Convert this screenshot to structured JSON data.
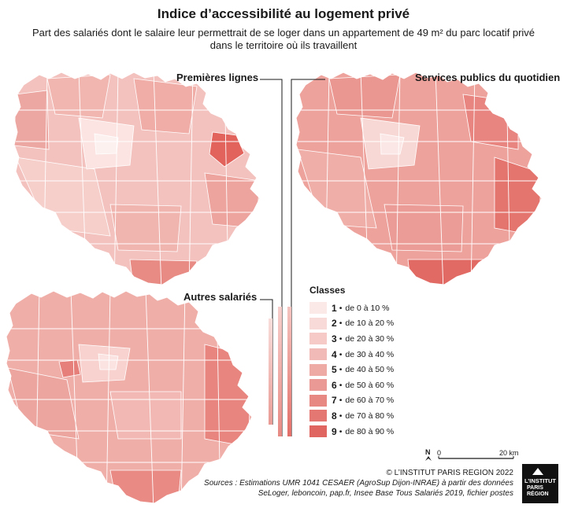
{
  "title": "Indice d’accessibilité au logement privé",
  "subtitle_line1": "Part des salariés dont le salaire leur permettrait de se loger dans un appartement de 49 m² du parc locatif privé",
  "subtitle_line2": "dans le territoire où ils travaillent",
  "maps": [
    {
      "label": "Premières lignes"
    },
    {
      "label": "Services publics du quotidien"
    },
    {
      "label": "Autres salariés"
    }
  ],
  "legend": {
    "title": "Classes",
    "classes": [
      {
        "num": "1",
        "label": "de 0 à 10 %",
        "color": "#fbe9e8"
      },
      {
        "num": "2",
        "label": "de 10 à 20 %",
        "color": "#f8dad8"
      },
      {
        "num": "3",
        "label": "de 20 à 30 %",
        "color": "#f5cac7"
      },
      {
        "num": "4",
        "label": "de 30 à 40 %",
        "color": "#f2bab6"
      },
      {
        "num": "5",
        "label": "de 40 à 50 %",
        "color": "#eeaaa5"
      },
      {
        "num": "6",
        "label": "de 50 à 60 %",
        "color": "#eb9994"
      },
      {
        "num": "7",
        "label": "de 60 à 70 %",
        "color": "#e88883"
      },
      {
        "num": "8",
        "label": "de 70 à 80 %",
        "color": "#e47772"
      },
      {
        "num": "9",
        "label": "de 80 à 90 %",
        "color": "#e06560"
      }
    ]
  },
  "scale": {
    "north": "N",
    "start": "0",
    "end": "20 km"
  },
  "copyright": "© L’INSTITUT PARIS REGION 2022",
  "sources_line1": "Sources : Estimations UMR 1041 CESAER (AgroSup Dijon-INRAE) à partir des données",
  "sources_line2": "SeLoger, leboncoin, pap.fr, Insee Base Tous Salariés 2019, fichier postes",
  "logo": {
    "line1": "L’INSTITUT",
    "line2": "PARIS",
    "line3": "RÉGION"
  }
}
